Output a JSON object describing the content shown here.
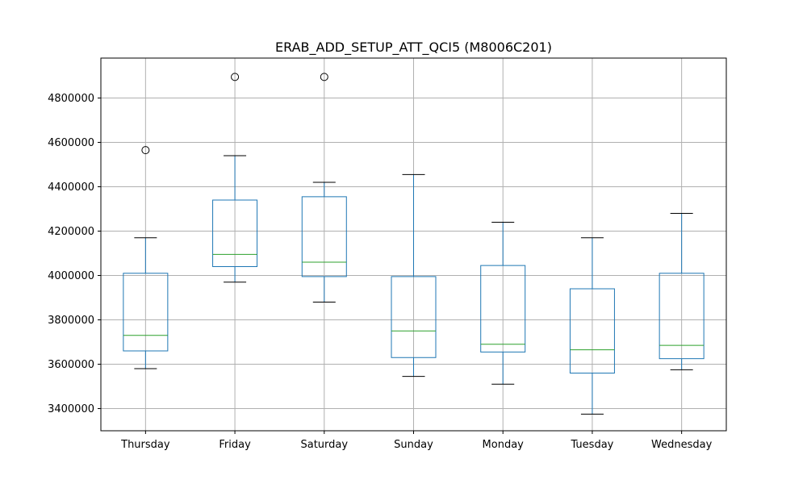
{
  "chart_data": {
    "type": "box",
    "title": "ERAB_ADD_SETUP_ATT_QCI5 (M8006C201)",
    "xlabel": "",
    "ylabel": "",
    "ylim": [
      3300000,
      4980000
    ],
    "yticks": [
      3400000,
      3600000,
      3800000,
      4000000,
      4200000,
      4400000,
      4600000,
      4800000
    ],
    "ytick_labels": [
      "3400000",
      "3600000",
      "3800000",
      "4000000",
      "4200000",
      "4400000",
      "4600000",
      "4800000"
    ],
    "grid": true,
    "legend": "none",
    "colors": {
      "box": "#1f77b4",
      "median": "#2ca02c",
      "whisker": "#1f77b4",
      "cap": "#000000",
      "outlier": "#000000",
      "grid": "#b0b0b0"
    },
    "categories": [
      "Thursday",
      "Friday",
      "Saturday",
      "Sunday",
      "Monday",
      "Tuesday",
      "Wednesday"
    ],
    "boxes": [
      {
        "category": "Thursday",
        "whisker_low": 3580000,
        "q1": 3660000,
        "median": 3730000,
        "q3": 4010000,
        "whisker_high": 4170000,
        "outliers": [
          4565000
        ]
      },
      {
        "category": "Friday",
        "whisker_low": 3970000,
        "q1": 4040000,
        "median": 4095000,
        "q3": 4340000,
        "whisker_high": 4540000,
        "outliers": [
          4895000
        ]
      },
      {
        "category": "Saturday",
        "whisker_low": 3880000,
        "q1": 3995000,
        "median": 4060000,
        "q3": 4355000,
        "whisker_high": 4420000,
        "outliers": [
          4895000
        ]
      },
      {
        "category": "Sunday",
        "whisker_low": 3545000,
        "q1": 3630000,
        "median": 3750000,
        "q3": 3995000,
        "whisker_high": 4455000,
        "outliers": []
      },
      {
        "category": "Monday",
        "whisker_low": 3510000,
        "q1": 3655000,
        "median": 3690000,
        "q3": 4045000,
        "whisker_high": 4240000,
        "outliers": []
      },
      {
        "category": "Tuesday",
        "whisker_low": 3375000,
        "q1": 3560000,
        "median": 3665000,
        "q3": 3940000,
        "whisker_high": 4170000,
        "outliers": []
      },
      {
        "category": "Wednesday",
        "whisker_low": 3575000,
        "q1": 3625000,
        "median": 3685000,
        "q3": 4010000,
        "whisker_high": 4280000,
        "outliers": []
      }
    ]
  }
}
